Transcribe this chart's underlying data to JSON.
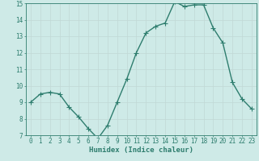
{
  "x": [
    0,
    1,
    2,
    3,
    4,
    5,
    6,
    7,
    8,
    9,
    10,
    11,
    12,
    13,
    14,
    15,
    16,
    17,
    18,
    19,
    20,
    21,
    22,
    23
  ],
  "y": [
    9.0,
    9.5,
    9.6,
    9.5,
    8.7,
    8.1,
    7.4,
    6.8,
    7.6,
    9.0,
    10.4,
    12.0,
    13.2,
    13.6,
    13.8,
    15.1,
    14.8,
    14.9,
    14.9,
    13.5,
    12.6,
    10.2,
    9.2,
    8.6
  ],
  "line_color": "#2e7d6e",
  "marker_color": "#2e7d6e",
  "bg_color": "#ceeae7",
  "grid_color": "#c0d8d5",
  "xlabel": "Humidex (Indice chaleur)",
  "ylim": [
    7,
    15
  ],
  "xlim_min": -0.5,
  "xlim_max": 23.5,
  "yticks": [
    7,
    8,
    9,
    10,
    11,
    12,
    13,
    14,
    15
  ],
  "xticks": [
    0,
    1,
    2,
    3,
    4,
    5,
    6,
    7,
    8,
    9,
    10,
    11,
    12,
    13,
    14,
    15,
    16,
    17,
    18,
    19,
    20,
    21,
    22,
    23
  ],
  "xlabel_color": "#2e7d6e",
  "tick_color": "#2e7d6e",
  "axis_color": "#2e7d6e",
  "linewidth": 1.0,
  "markersize": 2.5,
  "tick_fontsize": 5.5,
  "xlabel_fontsize": 6.5
}
